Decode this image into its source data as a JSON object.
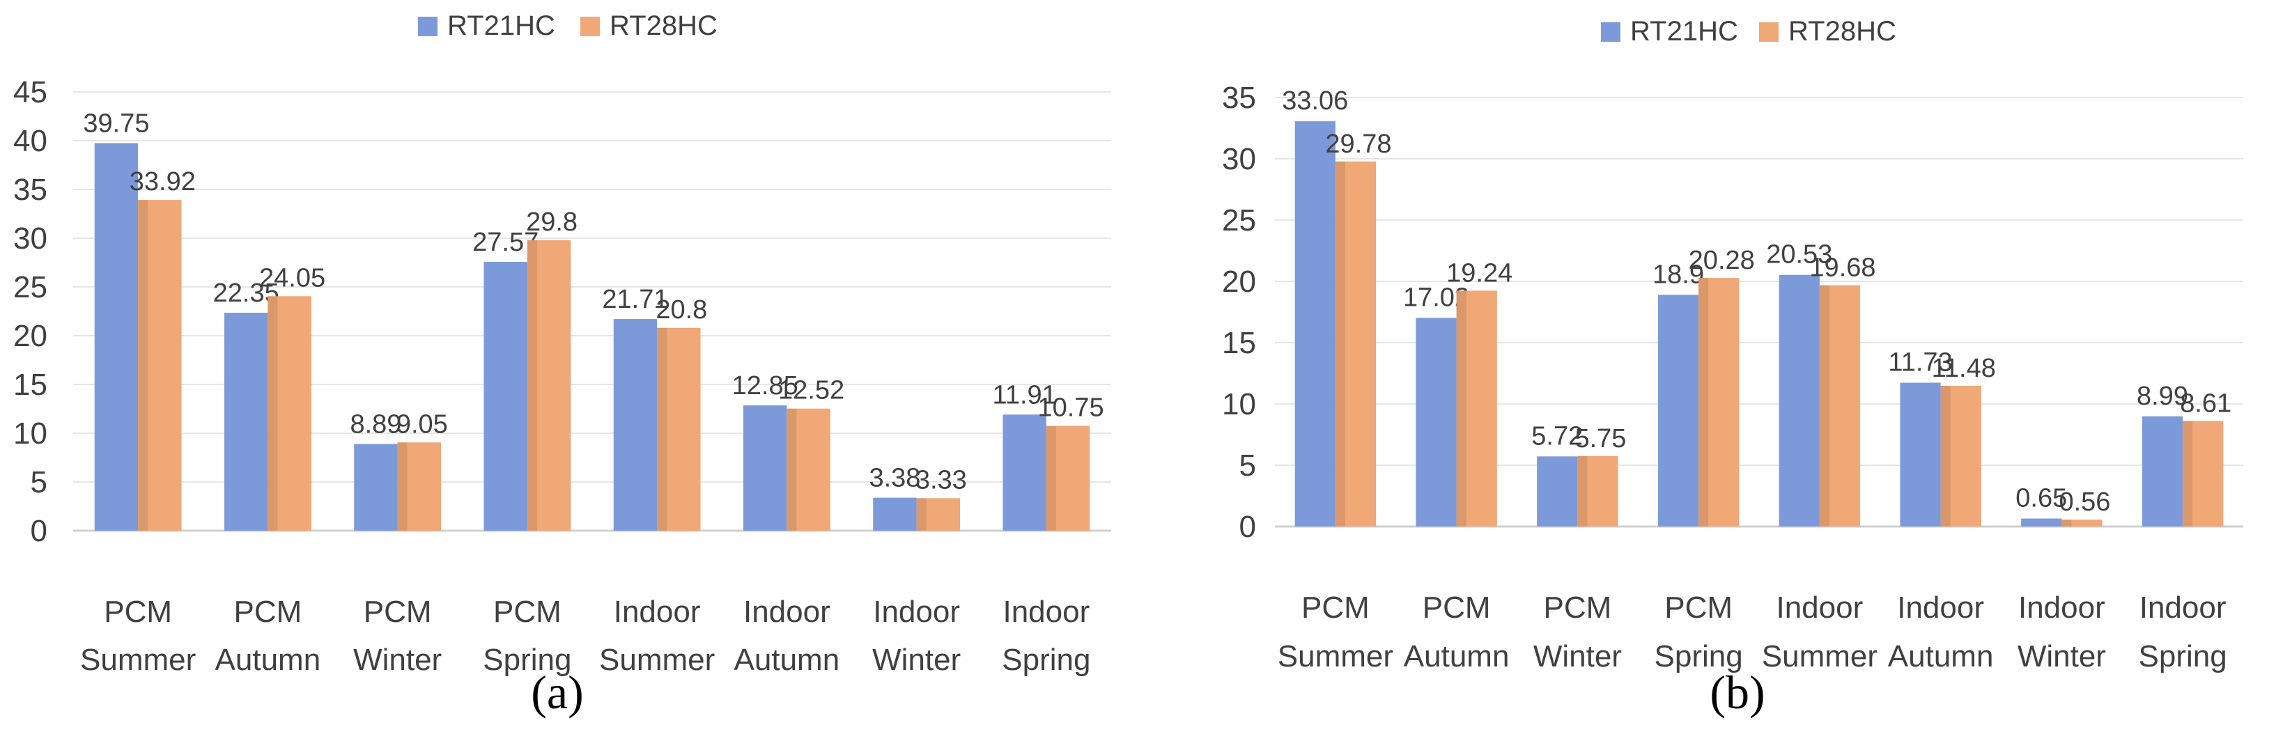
{
  "colors": {
    "rt21hc": "#7c9ad9",
    "rt28hc": "#f0a877",
    "grid": "#e6e6e6",
    "axis": "#d0d0d0",
    "text": "#404040"
  },
  "chart_data": [
    {
      "type": "bar",
      "panel_label": "(a)",
      "categories": [
        [
          "PCM",
          "Summer"
        ],
        [
          "PCM",
          "Autumn"
        ],
        [
          "PCM",
          "Winter"
        ],
        [
          "PCM",
          "Spring"
        ],
        [
          "Indoor",
          "Summer"
        ],
        [
          "Indoor",
          "Autumn"
        ],
        [
          "Indoor",
          "Winter"
        ],
        [
          "Indoor",
          "Spring"
        ]
      ],
      "series": [
        {
          "name": "RT21HC",
          "values": [
            39.75,
            22.35,
            8.89,
            27.57,
            21.71,
            12.85,
            3.38,
            11.91
          ]
        },
        {
          "name": "RT28HC",
          "values": [
            33.92,
            24.05,
            9.05,
            29.8,
            20.8,
            12.52,
            3.33,
            10.75
          ]
        }
      ],
      "ylim": [
        0,
        45
      ],
      "yticks": [
        0,
        5,
        10,
        15,
        20,
        25,
        30,
        35,
        40,
        45
      ],
      "grid": true,
      "legend": "top-center",
      "title": "",
      "xlabel": "",
      "ylabel": ""
    },
    {
      "type": "bar",
      "panel_label": "(b)",
      "categories": [
        [
          "PCM",
          "Summer"
        ],
        [
          "PCM",
          "Autumn"
        ],
        [
          "PCM",
          "Winter"
        ],
        [
          "PCM",
          "Spring"
        ],
        [
          "Indoor",
          "Summer"
        ],
        [
          "Indoor",
          "Autumn"
        ],
        [
          "Indoor",
          "Winter"
        ],
        [
          "Indoor",
          "Spring"
        ]
      ],
      "series": [
        {
          "name": "RT21HC",
          "values": [
            33.06,
            17.02,
            5.72,
            18.9,
            20.53,
            11.73,
            0.65,
            8.99
          ]
        },
        {
          "name": "RT28HC",
          "values": [
            29.78,
            19.24,
            5.75,
            20.28,
            19.68,
            11.48,
            0.56,
            8.61
          ]
        }
      ],
      "ylim": [
        0,
        35
      ],
      "yticks": [
        0,
        5,
        10,
        15,
        20,
        25,
        30,
        35
      ],
      "grid": true,
      "legend": "top-center",
      "title": "",
      "xlabel": "",
      "ylabel": ""
    }
  ]
}
